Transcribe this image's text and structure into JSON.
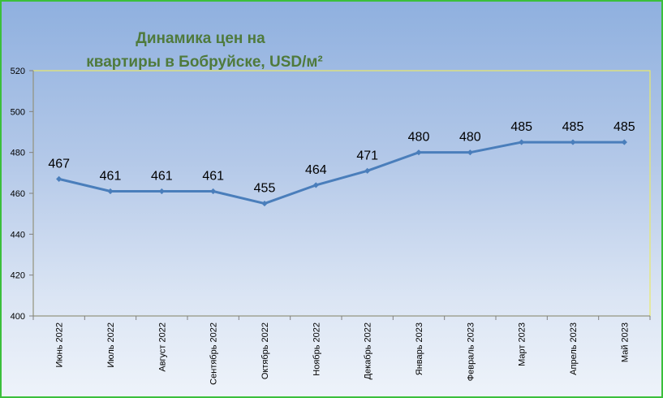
{
  "chart_data": {
    "type": "line",
    "title_lines": [
      "Динамика цен на",
      "квартиры в Бобруйске, USD/м²"
    ],
    "categories": [
      "Июнь 2022",
      "Июль 2022",
      "Август 2022",
      "Сентябрь 2022",
      "Октябрь 2022",
      "Ноябрь 2022",
      "Декабрь 2022",
      "Январь 2023",
      "Февраль 2023",
      "Март 2023",
      "Апрель 2023",
      "Май 2023"
    ],
    "values": [
      467,
      461,
      461,
      461,
      455,
      464,
      471,
      480,
      480,
      485,
      485,
      485
    ],
    "data_labels": [
      "467",
      "461",
      "461",
      "461",
      "455",
      "464",
      "471",
      "480",
      "480",
      "485",
      "485",
      "485"
    ],
    "ylim": [
      400,
      520
    ],
    "yticks": [
      400,
      420,
      440,
      460,
      480,
      500,
      520
    ],
    "ytick_labels": [
      "400",
      "420",
      "440",
      "460",
      "480",
      "500",
      "520"
    ],
    "grid": false,
    "legend": "none",
    "colors": {
      "line": "#4a7ebb",
      "title": "#4f7a3c",
      "frame_border": "#3bbf3b",
      "plot_border": "#e8e86a"
    }
  }
}
